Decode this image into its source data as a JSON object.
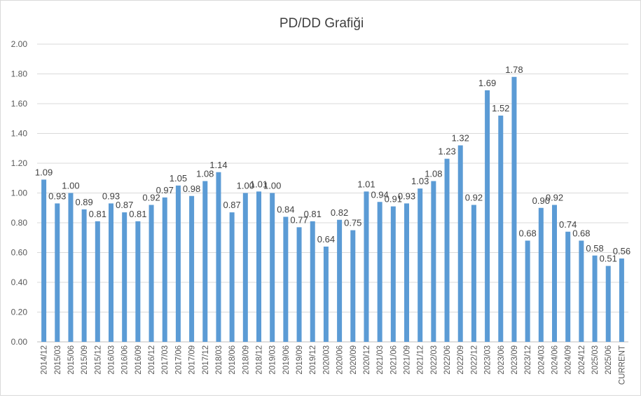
{
  "chart_data": {
    "type": "bar",
    "title": "PD/DD Grafiği",
    "xlabel": "",
    "ylabel": "",
    "ylim": [
      0,
      2
    ],
    "yticks": [
      "0.00",
      "0.20",
      "0.40",
      "0.60",
      "0.80",
      "1.00",
      "1.20",
      "1.40",
      "1.60",
      "1.80",
      "2.00"
    ],
    "grid": true,
    "legend": "none",
    "bar_color": "#5B9BD5",
    "categories": [
      "2014/12",
      "2015/03",
      "2015/06",
      "2015/09",
      "2015/12",
      "2016/03",
      "2016/06",
      "2016/09",
      "2016/12",
      "2017/03",
      "2017/06",
      "2017/09",
      "2017/12",
      "2018/03",
      "2018/06",
      "2018/09",
      "2018/12",
      "2019/03",
      "2019/06",
      "2019/09",
      "2019/12",
      "2020/03",
      "2020/06",
      "2020/09",
      "2020/12",
      "2021/03",
      "2021/06",
      "2021/09",
      "2021/12",
      "2022/03",
      "2022/06",
      "2022/09",
      "2022/12",
      "2023/03",
      "2023/06",
      "2023/09",
      "2023/12",
      "2024/03",
      "2024/06",
      "2024/09",
      "2024/12",
      "2025/03",
      "2025/06",
      "CURRENT"
    ],
    "values": [
      1.09,
      0.93,
      1.0,
      0.89,
      0.81,
      0.93,
      0.87,
      0.81,
      0.92,
      0.97,
      1.05,
      0.98,
      1.08,
      1.14,
      0.87,
      1.0,
      1.01,
      1.0,
      0.84,
      0.77,
      0.81,
      0.64,
      0.82,
      0.75,
      1.01,
      0.94,
      0.91,
      0.93,
      1.03,
      1.08,
      1.23,
      1.32,
      0.92,
      1.69,
      1.52,
      1.78,
      0.68,
      0.9,
      0.92,
      0.74,
      0.68,
      0.58,
      0.51,
      0.56
    ]
  }
}
